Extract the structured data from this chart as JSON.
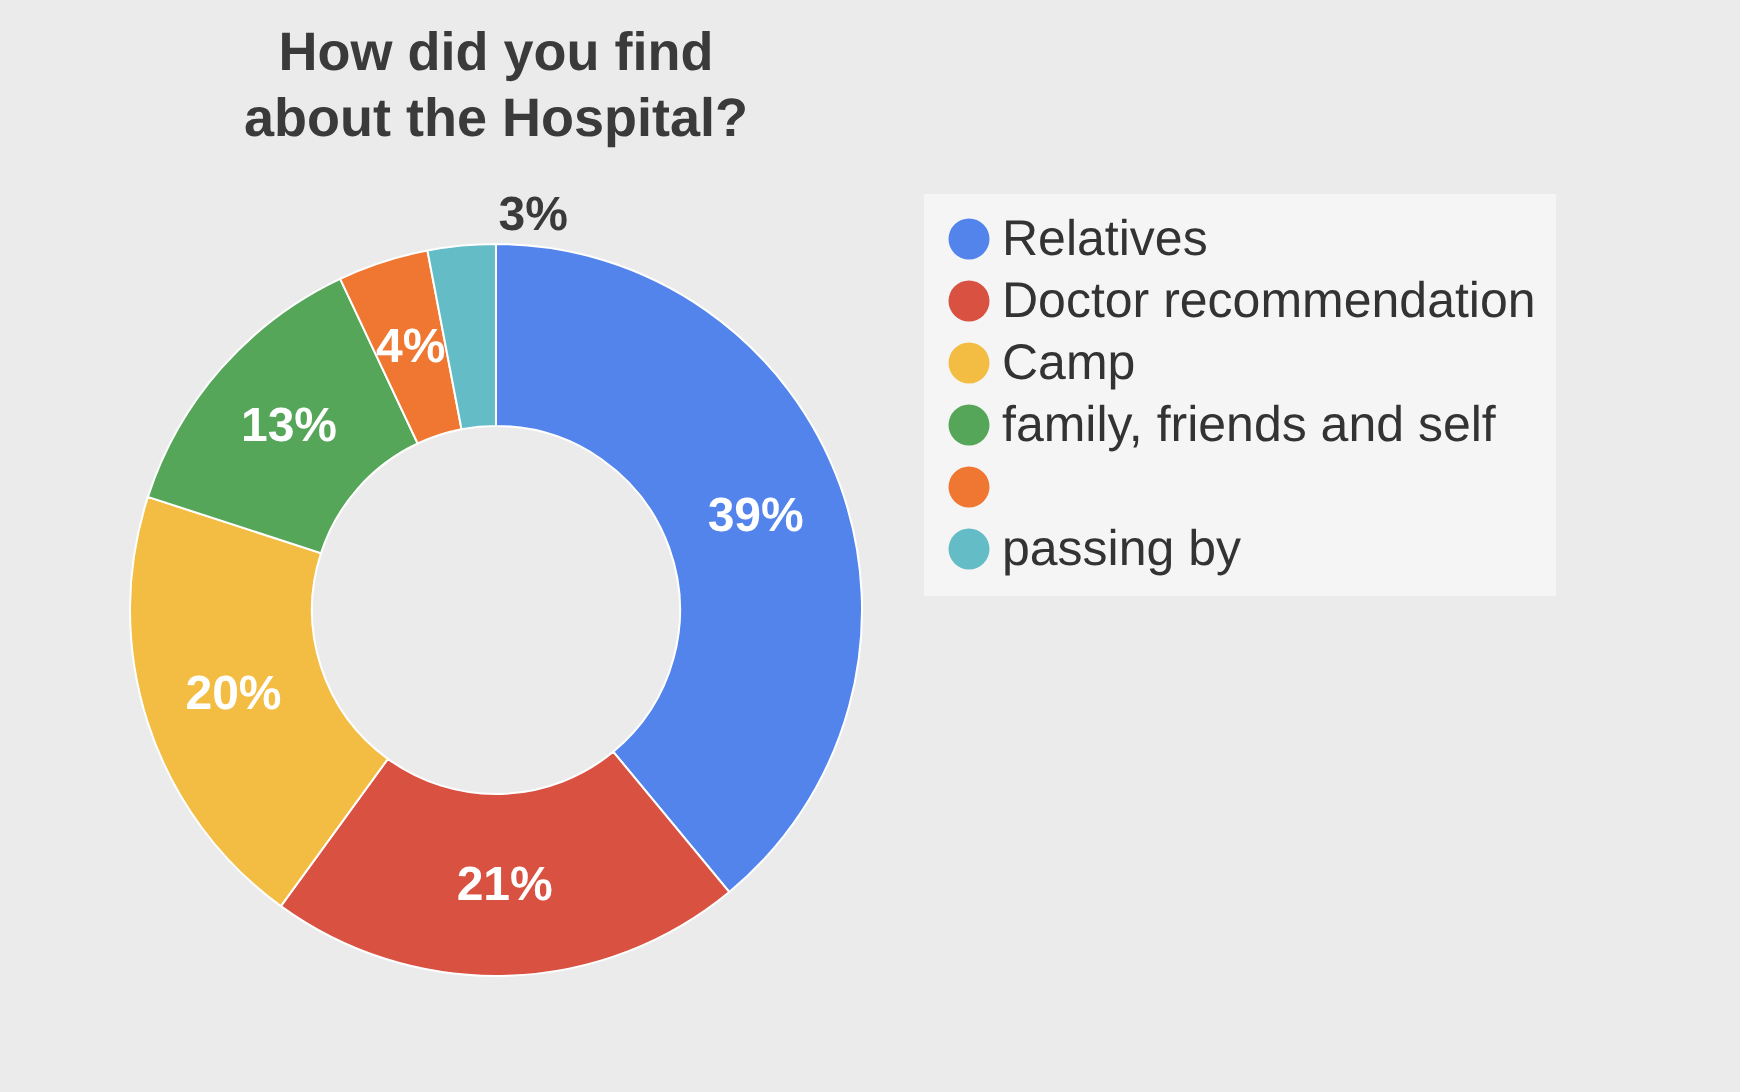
{
  "chart_data": {
    "type": "donut",
    "title": "How did you find about the Hospital?",
    "categories": [
      "Relatives",
      "Doctor recommendation",
      "Camp",
      "family, friends and self",
      null,
      "passing by"
    ],
    "values": [
      39,
      21,
      20,
      13,
      4,
      3
    ],
    "value_labels": [
      "39%",
      "21%",
      "20%",
      "13%",
      "4%",
      "3%"
    ],
    "colors": [
      "#5284ec",
      "#d95140",
      "#f2bd42",
      "#56a65a",
      "#ef7732",
      "#64bdc6"
    ],
    "legend": "right"
  }
}
